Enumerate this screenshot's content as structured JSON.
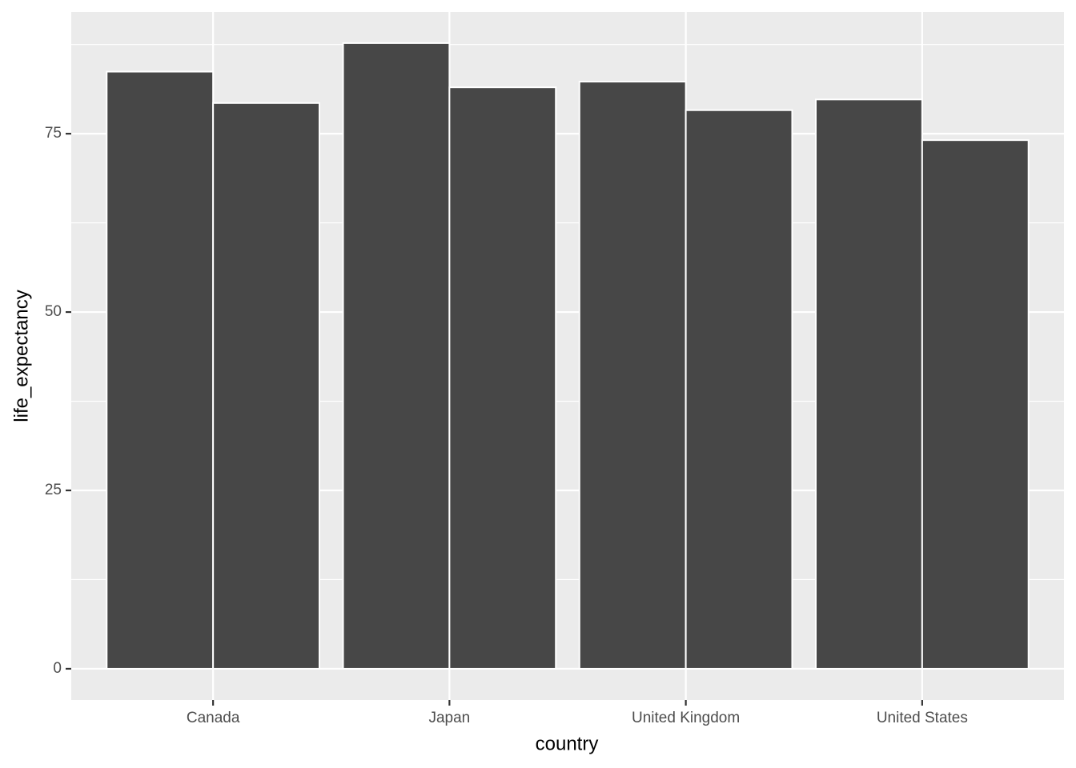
{
  "chart_data": {
    "type": "bar",
    "x_label": "country",
    "y_label": "life_expectancy",
    "categories": [
      "Canada",
      "Japan",
      "United Kingdom",
      "United States"
    ],
    "series": [
      {
        "color": "#474747",
        "values": [
          83.7,
          87.7,
          82.3,
          79.8
        ]
      },
      {
        "color": "#474747",
        "values": [
          79.3,
          81.5,
          78.3,
          74.1
        ]
      }
    ],
    "ylim": [
      -4.38,
      92.06
    ],
    "yticks": [
      0,
      25,
      50,
      75
    ],
    "grid": true
  }
}
